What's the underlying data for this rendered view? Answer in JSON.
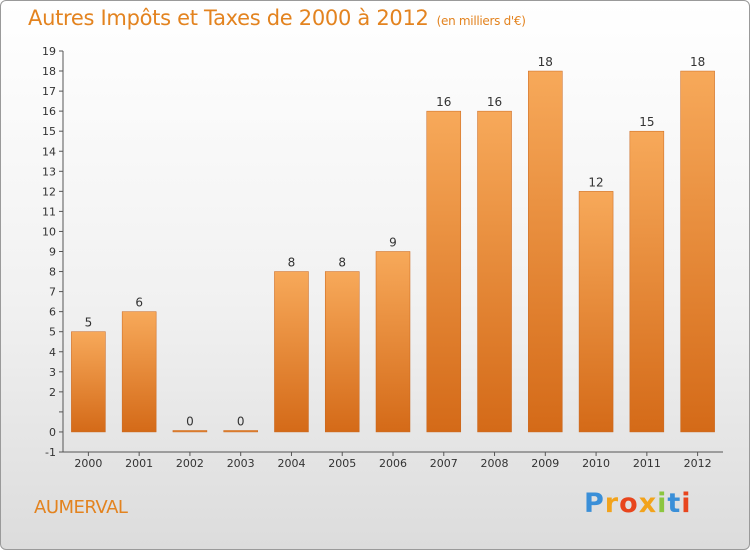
{
  "title": "Autres Impôts et Taxes de 2000 à 2012",
  "unit": "(en milliers d'€)",
  "commune": "AUMERVAL",
  "logo": {
    "text": "Proxiti",
    "letters": [
      {
        "ch": "P",
        "color": "#3a8fd8"
      },
      {
        "ch": "r",
        "color": "#f2a31b"
      },
      {
        "ch": "o",
        "color": "#e8451d"
      },
      {
        "ch": "x",
        "color": "#f2a31b"
      },
      {
        "ch": "i",
        "color": "#8cc63f"
      },
      {
        "ch": "t",
        "color": "#3a8fd8"
      },
      {
        "ch": "i",
        "color": "#e8451d"
      }
    ]
  },
  "colors": {
    "bar_top": "#f7a95a",
    "bar_bottom": "#d46a18",
    "text": "#333333",
    "accent": "#e3831f"
  },
  "chart_data": {
    "type": "bar",
    "categories": [
      "2000",
      "2001",
      "2002",
      "2003",
      "2004",
      "2005",
      "2006",
      "2007",
      "2008",
      "2009",
      "2010",
      "2011",
      "2012"
    ],
    "values": [
      5,
      6,
      0,
      0,
      8,
      8,
      9,
      16,
      16,
      18,
      12,
      15,
      18
    ],
    "data_labels": [
      "5",
      "6",
      "0",
      "0",
      "8",
      "8",
      "9",
      "16",
      "16",
      "18",
      "12",
      "15",
      "18"
    ],
    "ylim": [
      -1,
      19
    ],
    "yticks": [
      -1,
      0,
      2,
      3,
      4,
      5,
      6,
      7,
      8,
      9,
      10,
      11,
      12,
      13,
      14,
      15,
      16,
      17,
      18,
      19
    ],
    "grid": false,
    "xlabel": "",
    "ylabel": ""
  }
}
